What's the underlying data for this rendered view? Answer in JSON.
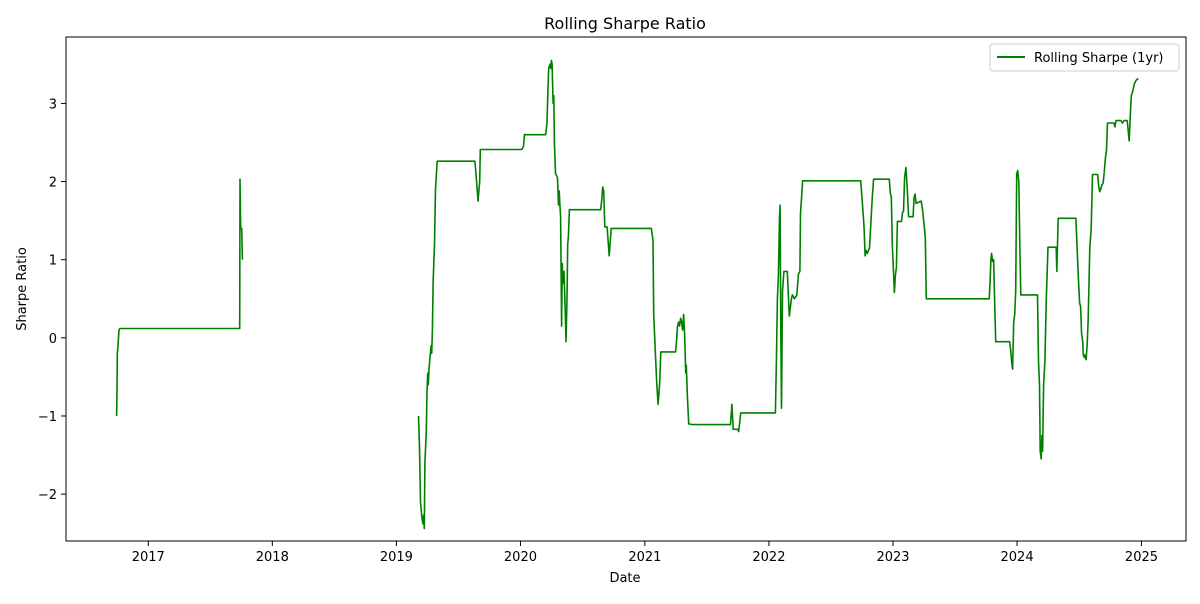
{
  "chart_data": {
    "type": "line",
    "title": "Rolling Sharpe Ratio",
    "xlabel": "Date",
    "ylabel": "Sharpe Ratio",
    "x_is_date": true,
    "xlim": [
      "2016-05-04",
      "2025-05-12"
    ],
    "ylim": [
      -2.6,
      3.85
    ],
    "xticks": [
      {
        "value": "2017-01-01",
        "label": "2017"
      },
      {
        "value": "2018-01-01",
        "label": "2018"
      },
      {
        "value": "2019-01-01",
        "label": "2019"
      },
      {
        "value": "2020-01-01",
        "label": "2020"
      },
      {
        "value": "2021-01-01",
        "label": "2021"
      },
      {
        "value": "2022-01-01",
        "label": "2022"
      },
      {
        "value": "2023-01-01",
        "label": "2023"
      },
      {
        "value": "2024-01-01",
        "label": "2024"
      },
      {
        "value": "2025-01-01",
        "label": "2025"
      }
    ],
    "yticks": [
      {
        "value": -2,
        "label": "−2"
      },
      {
        "value": -1,
        "label": "−1"
      },
      {
        "value": 0,
        "label": "0"
      },
      {
        "value": 1,
        "label": "1"
      },
      {
        "value": 2,
        "label": "2"
      },
      {
        "value": 3,
        "label": "3"
      }
    ],
    "grid": false,
    "legend": {
      "position": "top-right"
    },
    "series": [
      {
        "name": "Rolling Sharpe (1yr)",
        "color": "#008000",
        "segments": [
          [
            [
              "2016-09-30",
              -1.0
            ],
            [
              "2016-10-01",
              -0.7
            ],
            [
              "2016-10-02",
              -0.2
            ],
            [
              "2016-10-03",
              -0.15
            ],
            [
              "2016-10-07",
              0.1
            ],
            [
              "2016-10-10",
              0.12
            ],
            [
              "2017-09-27",
              0.12
            ],
            [
              "2017-09-28",
              2.03
            ],
            [
              "2017-09-30",
              1.4
            ],
            [
              "2017-10-03",
              1.4
            ],
            [
              "2017-10-05",
              1.0
            ]
          ],
          [
            [
              "2019-03-07",
              -1.0
            ],
            [
              "2019-03-10",
              -1.4
            ],
            [
              "2019-03-13",
              -2.1
            ],
            [
              "2019-03-17",
              -2.3
            ],
            [
              "2019-03-20",
              -2.38
            ],
            [
              "2019-03-22",
              -2.27
            ],
            [
              "2019-03-24",
              -2.44
            ],
            [
              "2019-03-26",
              -1.6
            ],
            [
              "2019-03-30",
              -1.2
            ],
            [
              "2019-04-01",
              -0.7
            ],
            [
              "2019-04-03",
              -0.45
            ],
            [
              "2019-04-05",
              -0.6
            ],
            [
              "2019-04-07",
              -0.4
            ],
            [
              "2019-04-10",
              -0.25
            ],
            [
              "2019-04-13",
              -0.1
            ],
            [
              "2019-04-15",
              -0.2
            ],
            [
              "2019-04-17",
              0.1
            ],
            [
              "2019-04-19",
              0.7
            ],
            [
              "2019-04-23",
              1.2
            ],
            [
              "2019-04-26",
              1.9
            ],
            [
              "2019-05-01",
              2.26
            ],
            [
              "2019-08-20",
              2.26
            ],
            [
              "2019-08-25",
              2.0
            ],
            [
              "2019-08-29",
              1.75
            ],
            [
              "2019-09-03",
              2.0
            ],
            [
              "2019-09-05",
              2.41
            ],
            [
              "2020-01-05",
              2.41
            ],
            [
              "2020-01-10",
              2.45
            ],
            [
              "2020-01-13",
              2.6
            ],
            [
              "2020-03-15",
              2.6
            ],
            [
              "2020-03-19",
              2.75
            ],
            [
              "2020-03-22",
              3.2
            ],
            [
              "2020-03-24",
              3.45
            ],
            [
              "2020-03-28",
              3.5
            ],
            [
              "2020-03-30",
              3.45
            ],
            [
              "2020-04-01",
              3.55
            ],
            [
              "2020-04-03",
              3.5
            ],
            [
              "2020-04-06",
              3.0
            ],
            [
              "2020-04-08",
              3.1
            ],
            [
              "2020-04-10",
              2.5
            ],
            [
              "2020-04-13",
              2.1
            ],
            [
              "2020-04-16",
              2.08
            ],
            [
              "2020-04-19",
              2.05
            ],
            [
              "2020-04-22",
              1.7
            ],
            [
              "2020-04-24",
              1.88
            ],
            [
              "2020-04-26",
              1.7
            ],
            [
              "2020-04-28",
              1.55
            ],
            [
              "2020-05-01",
              0.15
            ],
            [
              "2020-05-03",
              0.95
            ],
            [
              "2020-05-05",
              0.7
            ],
            [
              "2020-05-08",
              0.85
            ],
            [
              "2020-05-10",
              0.6
            ],
            [
              "2020-05-12",
              0.3
            ],
            [
              "2020-05-14",
              -0.05
            ],
            [
              "2020-05-17",
              0.5
            ],
            [
              "2020-05-19",
              1.2
            ],
            [
              "2020-05-21",
              1.3
            ],
            [
              "2020-05-24",
              1.64
            ],
            [
              "2020-08-24",
              1.64
            ],
            [
              "2020-08-28",
              1.8
            ],
            [
              "2020-08-30",
              1.93
            ],
            [
              "2020-09-02",
              1.88
            ],
            [
              "2020-09-05",
              1.42
            ],
            [
              "2020-09-12",
              1.42
            ],
            [
              "2020-09-18",
              1.05
            ],
            [
              "2020-09-24",
              1.4
            ],
            [
              "2021-01-20",
              1.4
            ],
            [
              "2021-01-25",
              1.25
            ],
            [
              "2021-01-27",
              0.3
            ],
            [
              "2021-02-01",
              -0.2
            ],
            [
              "2021-02-05",
              -0.6
            ],
            [
              "2021-02-09",
              -0.85
            ],
            [
              "2021-02-14",
              -0.55
            ],
            [
              "2021-02-17",
              -0.18
            ],
            [
              "2021-04-01",
              -0.18
            ],
            [
              "2021-04-04",
              -0.05
            ],
            [
              "2021-04-07",
              0.15
            ],
            [
              "2021-04-10",
              0.2
            ],
            [
              "2021-04-13",
              0.15
            ],
            [
              "2021-04-16",
              0.25
            ],
            [
              "2021-04-19",
              0.2
            ],
            [
              "2021-04-22",
              0.1
            ],
            [
              "2021-04-25",
              0.3
            ],
            [
              "2021-04-28",
              0.05
            ],
            [
              "2021-05-01",
              -0.45
            ],
            [
              "2021-05-03",
              -0.35
            ],
            [
              "2021-05-06",
              -0.75
            ],
            [
              "2021-05-10",
              -1.1
            ],
            [
              "2021-05-20",
              -1.11
            ],
            [
              "2021-09-10",
              -1.11
            ],
            [
              "2021-09-14",
              -0.85
            ],
            [
              "2021-09-18",
              -1.17
            ],
            [
              "2021-10-01",
              -1.17
            ],
            [
              "2021-10-04",
              -1.2
            ],
            [
              "2021-10-10",
              -0.96
            ],
            [
              "2022-01-20",
              -0.96
            ],
            [
              "2022-01-23",
              -0.3
            ],
            [
              "2022-01-26",
              0.5
            ],
            [
              "2022-01-29",
              0.8
            ],
            [
              "2022-02-01",
              1.55
            ],
            [
              "2022-02-03",
              1.7
            ],
            [
              "2022-02-05",
              0.1
            ],
            [
              "2022-02-07",
              -0.9
            ],
            [
              "2022-02-10",
              0.6
            ],
            [
              "2022-02-14",
              0.85
            ],
            [
              "2022-02-24",
              0.85
            ],
            [
              "2022-03-02",
              0.28
            ],
            [
              "2022-03-08",
              0.5
            ],
            [
              "2022-03-11",
              0.55
            ],
            [
              "2022-03-17",
              0.5
            ],
            [
              "2022-03-24",
              0.55
            ],
            [
              "2022-03-29",
              0.82
            ],
            [
              "2022-04-02",
              0.85
            ],
            [
              "2022-04-04",
              1.6
            ],
            [
              "2022-04-07",
              1.8
            ],
            [
              "2022-04-10",
              2.01
            ],
            [
              "2022-09-28",
              2.01
            ],
            [
              "2022-10-05",
              1.6
            ],
            [
              "2022-10-08",
              1.4
            ],
            [
              "2022-10-11",
              1.05
            ],
            [
              "2022-10-14",
              1.12
            ],
            [
              "2022-10-17",
              1.08
            ],
            [
              "2022-10-24",
              1.15
            ],
            [
              "2022-11-01",
              1.8
            ],
            [
              "2022-11-05",
              2.03
            ],
            [
              "2022-12-21",
              2.03
            ],
            [
              "2022-12-24",
              1.85
            ],
            [
              "2022-12-27",
              1.8
            ],
            [
              "2022-12-30",
              1.2
            ],
            [
              "2023-01-02",
              0.9
            ],
            [
              "2023-01-05",
              0.58
            ],
            [
              "2023-01-08",
              0.8
            ],
            [
              "2023-01-11",
              0.9
            ],
            [
              "2023-01-14",
              1.49
            ],
            [
              "2023-01-26",
              1.49
            ],
            [
              "2023-01-29",
              1.6
            ],
            [
              "2023-02-01",
              1.62
            ],
            [
              "2023-02-04",
              2.05
            ],
            [
              "2023-02-08",
              2.18
            ],
            [
              "2023-02-12",
              1.9
            ],
            [
              "2023-02-16",
              1.55
            ],
            [
              "2023-03-01",
              1.55
            ],
            [
              "2023-03-04",
              1.8
            ],
            [
              "2023-03-07",
              1.84
            ],
            [
              "2023-03-10",
              1.72
            ],
            [
              "2023-03-20",
              1.74
            ],
            [
              "2023-03-25",
              1.75
            ],
            [
              "2023-03-30",
              1.6
            ],
            [
              "2023-04-03",
              1.42
            ],
            [
              "2023-04-06",
              1.28
            ],
            [
              "2023-04-09",
              0.5
            ],
            [
              "2023-10-11",
              0.5
            ],
            [
              "2023-10-14",
              0.75
            ],
            [
              "2023-10-16",
              1.0
            ],
            [
              "2023-10-18",
              1.08
            ],
            [
              "2023-10-21",
              0.98
            ],
            [
              "2023-10-24",
              1.0
            ],
            [
              "2023-10-27",
              0.5
            ],
            [
              "2023-10-30",
              -0.05
            ],
            [
              "2023-12-10",
              -0.05
            ],
            [
              "2023-12-13",
              -0.15
            ],
            [
              "2023-12-16",
              -0.3
            ],
            [
              "2023-12-19",
              -0.4
            ],
            [
              "2023-12-22",
              0.2
            ],
            [
              "2023-12-25",
              0.3
            ],
            [
              "2023-12-28",
              0.6
            ],
            [
              "2023-12-31",
              2.1
            ],
            [
              "2024-01-03",
              2.14
            ],
            [
              "2024-01-06",
              2.0
            ],
            [
              "2024-01-09",
              1.2
            ],
            [
              "2024-01-12",
              0.55
            ],
            [
              "2024-03-01",
              0.55
            ],
            [
              "2024-03-04",
              -0.3
            ],
            [
              "2024-03-07",
              -0.6
            ],
            [
              "2024-03-09",
              -1.45
            ],
            [
              "2024-03-12",
              -1.55
            ],
            [
              "2024-03-14",
              -1.25
            ],
            [
              "2024-03-16",
              -1.45
            ],
            [
              "2024-03-19",
              -0.6
            ],
            [
              "2024-03-23",
              -0.3
            ],
            [
              "2024-03-27",
              0.5
            ],
            [
              "2024-04-01",
              1.16
            ],
            [
              "2024-04-25",
              1.16
            ],
            [
              "2024-04-27",
              0.85
            ],
            [
              "2024-05-01",
              1.53
            ],
            [
              "2024-06-22",
              1.53
            ],
            [
              "2024-06-27",
              1.0
            ],
            [
              "2024-06-30",
              0.7
            ],
            [
              "2024-07-03",
              0.45
            ],
            [
              "2024-07-06",
              0.4
            ],
            [
              "2024-07-09",
              0.05
            ],
            [
              "2024-07-12",
              -0.05
            ],
            [
              "2024-07-14",
              -0.22
            ],
            [
              "2024-07-17",
              -0.25
            ],
            [
              "2024-07-19",
              -0.22
            ],
            [
              "2024-07-22",
              -0.28
            ],
            [
              "2024-07-25",
              -0.1
            ],
            [
              "2024-07-28",
              0.2
            ],
            [
              "2024-08-02",
              1.15
            ],
            [
              "2024-08-06",
              1.4
            ],
            [
              "2024-08-10",
              2.09
            ],
            [
              "2024-08-25",
              2.09
            ],
            [
              "2024-08-28",
              1.95
            ],
            [
              "2024-08-31",
              1.87
            ],
            [
              "2024-09-03",
              1.9
            ],
            [
              "2024-09-06",
              1.95
            ],
            [
              "2024-09-10",
              1.98
            ],
            [
              "2024-09-13",
              2.1
            ],
            [
              "2024-09-17",
              2.3
            ],
            [
              "2024-09-20",
              2.4
            ],
            [
              "2024-09-23",
              2.75
            ],
            [
              "2024-10-12",
              2.75
            ],
            [
              "2024-10-15",
              2.7
            ],
            [
              "2024-10-18",
              2.78
            ],
            [
              "2024-11-02",
              2.78
            ],
            [
              "2024-11-06",
              2.75
            ],
            [
              "2024-11-11",
              2.78
            ],
            [
              "2024-11-20",
              2.78
            ],
            [
              "2024-11-23",
              2.65
            ],
            [
              "2024-11-26",
              2.52
            ],
            [
              "2024-11-29",
              2.85
            ],
            [
              "2024-12-02",
              3.1
            ],
            [
              "2024-12-06",
              3.15
            ],
            [
              "2024-12-11",
              3.25
            ],
            [
              "2024-12-17",
              3.3
            ],
            [
              "2024-12-23",
              3.32
            ]
          ]
        ]
      }
    ]
  }
}
